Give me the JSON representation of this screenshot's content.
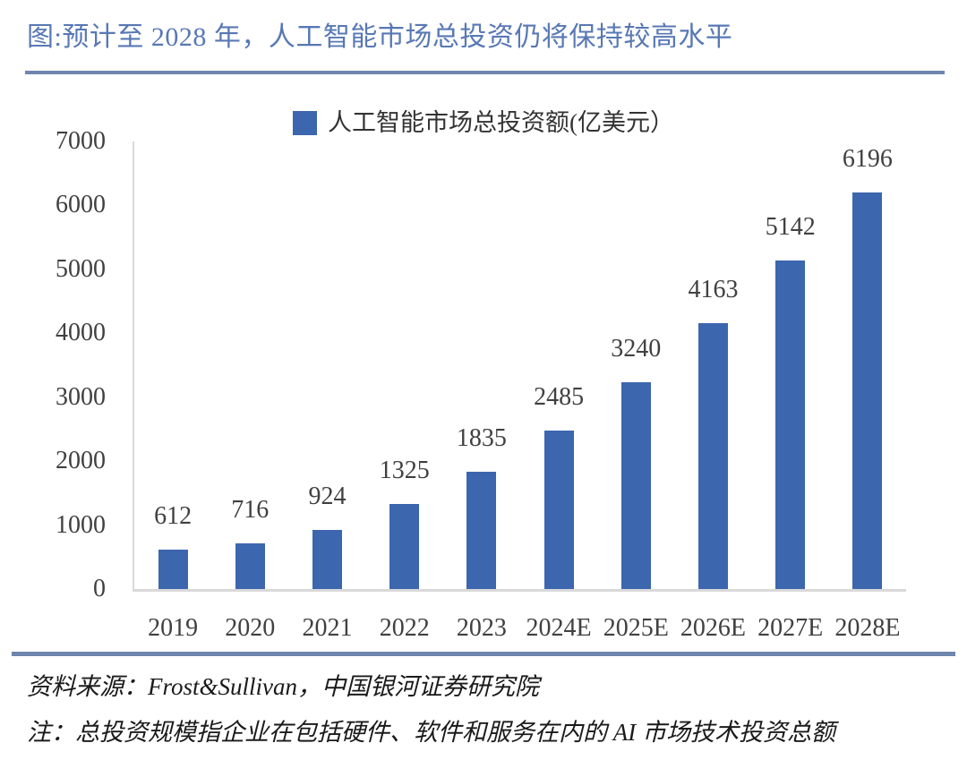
{
  "title": "图:预计至 2028 年，人工智能市场总投资仍将保持较高水平",
  "chart_data": {
    "type": "bar",
    "title": "人工智能市场总投资额(亿美元）",
    "legend": "人工智能市场总投资额(亿美元）",
    "legend_position": "top-center",
    "categories": [
      "2019",
      "2020",
      "2021",
      "2022",
      "2023",
      "2024E",
      "2025E",
      "2026E",
      "2027E",
      "2028E"
    ],
    "values": [
      612,
      716,
      924,
      1325,
      1835,
      2485,
      3240,
      4163,
      5142,
      6196
    ],
    "xlabel": "",
    "ylabel": "",
    "ylim": [
      0,
      7000
    ],
    "yticks": [
      0,
      1000,
      2000,
      3000,
      4000,
      5000,
      6000,
      7000
    ],
    "grid": false,
    "data_labels": true
  },
  "footer": {
    "source": "资料来源：Frost&Sullivan，中国银河证券研究院",
    "note": "注：总投资规模指企业在包括硬件、软件和服务在内的 AI 市场技术投资总额"
  },
  "colors": {
    "bar": "#3C66AE",
    "title_text": "#5878B4",
    "rule": "#6E86AD",
    "axis_line": "#D9D9D9",
    "tick_label": "#404040",
    "footer_text": "#1A1A1A",
    "background": "#FFFFFF"
  }
}
